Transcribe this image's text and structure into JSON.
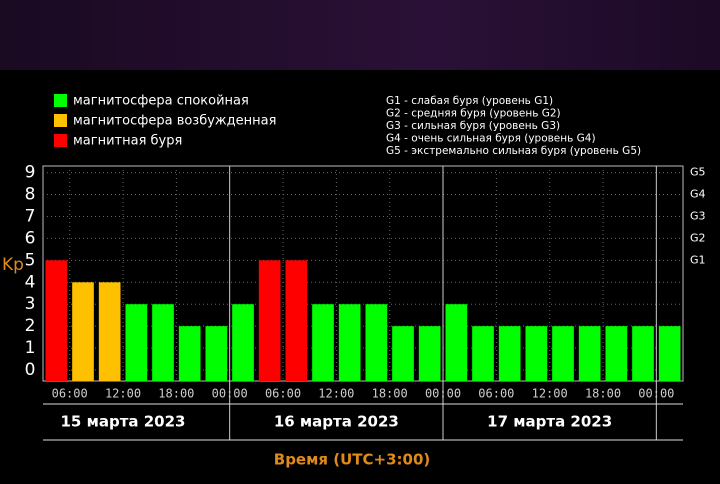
{
  "chart_data": {
    "type": "bar",
    "ylabel": "Kp",
    "xlabel": "Время (UTC+3:00)",
    "legend": [
      {
        "label": "магнитосфера спокойная",
        "color": "#00ff00"
      },
      {
        "label": "магнитосфера возбужденная",
        "color": "#ffc000"
      },
      {
        "label": "магнитная буря",
        "color": "#ff0000"
      }
    ],
    "notes": [
      "G1 - слабая буря (уровень G1)",
      "G2 - средняя буря (уровень G2)",
      "G3 - сильная буря (уровень G3)",
      "G4 - очень сильная буря (уровень G4)",
      "G5 - экстремально сильная буря (уровень G5)"
    ],
    "values": [
      5,
      4,
      4,
      3,
      3,
      2,
      2,
      3,
      5,
      5,
      3,
      3,
      3,
      2,
      2,
      3,
      2,
      2,
      2,
      2,
      2,
      2,
      2,
      2
    ],
    "colors": [
      "#ff0000",
      "#ffc000",
      "#ffc000",
      "#00ff00",
      "#00ff00",
      "#00ff00",
      "#00ff00",
      "#00ff00",
      "#ff0000",
      "#ff0000",
      "#00ff00",
      "#00ff00",
      "#00ff00",
      "#00ff00",
      "#00ff00",
      "#00ff00",
      "#00ff00",
      "#00ff00",
      "#00ff00",
      "#00ff00",
      "#00ff00",
      "#00ff00",
      "#00ff00",
      "#00ff00"
    ],
    "ylim": [
      -0.5,
      9.3
    ],
    "yticks": [
      0,
      1,
      2,
      3,
      4,
      5,
      6,
      7,
      8,
      9
    ],
    "y2ticks": [
      {
        "value": 5,
        "label": "G1"
      },
      {
        "value": 6,
        "label": "G2"
      },
      {
        "value": 7,
        "label": "G3"
      },
      {
        "value": 8,
        "label": "G4"
      },
      {
        "value": 9,
        "label": "G5"
      }
    ],
    "xlim": [
      3,
      75
    ],
    "xticks": [
      {
        "value": 6,
        "label": "06:00"
      },
      {
        "value": 12,
        "label": "12:00"
      },
      {
        "value": 18,
        "label": "18:00"
      },
      {
        "value": 24,
        "label": "00:00"
      },
      {
        "value": 30,
        "label": "06:00"
      },
      {
        "value": 36,
        "label": "12:00"
      },
      {
        "value": 42,
        "label": "18:00"
      },
      {
        "value": 48,
        "label": "00:00"
      },
      {
        "value": 54,
        "label": "06:00"
      },
      {
        "value": 60,
        "label": "12:00"
      },
      {
        "value": 66,
        "label": "18:00"
      },
      {
        "value": 72,
        "label": "00:00"
      }
    ],
    "days": [
      "15 марта 2023",
      "16 марта 2023",
      "17 марта 2023"
    ],
    "grid": true
  }
}
